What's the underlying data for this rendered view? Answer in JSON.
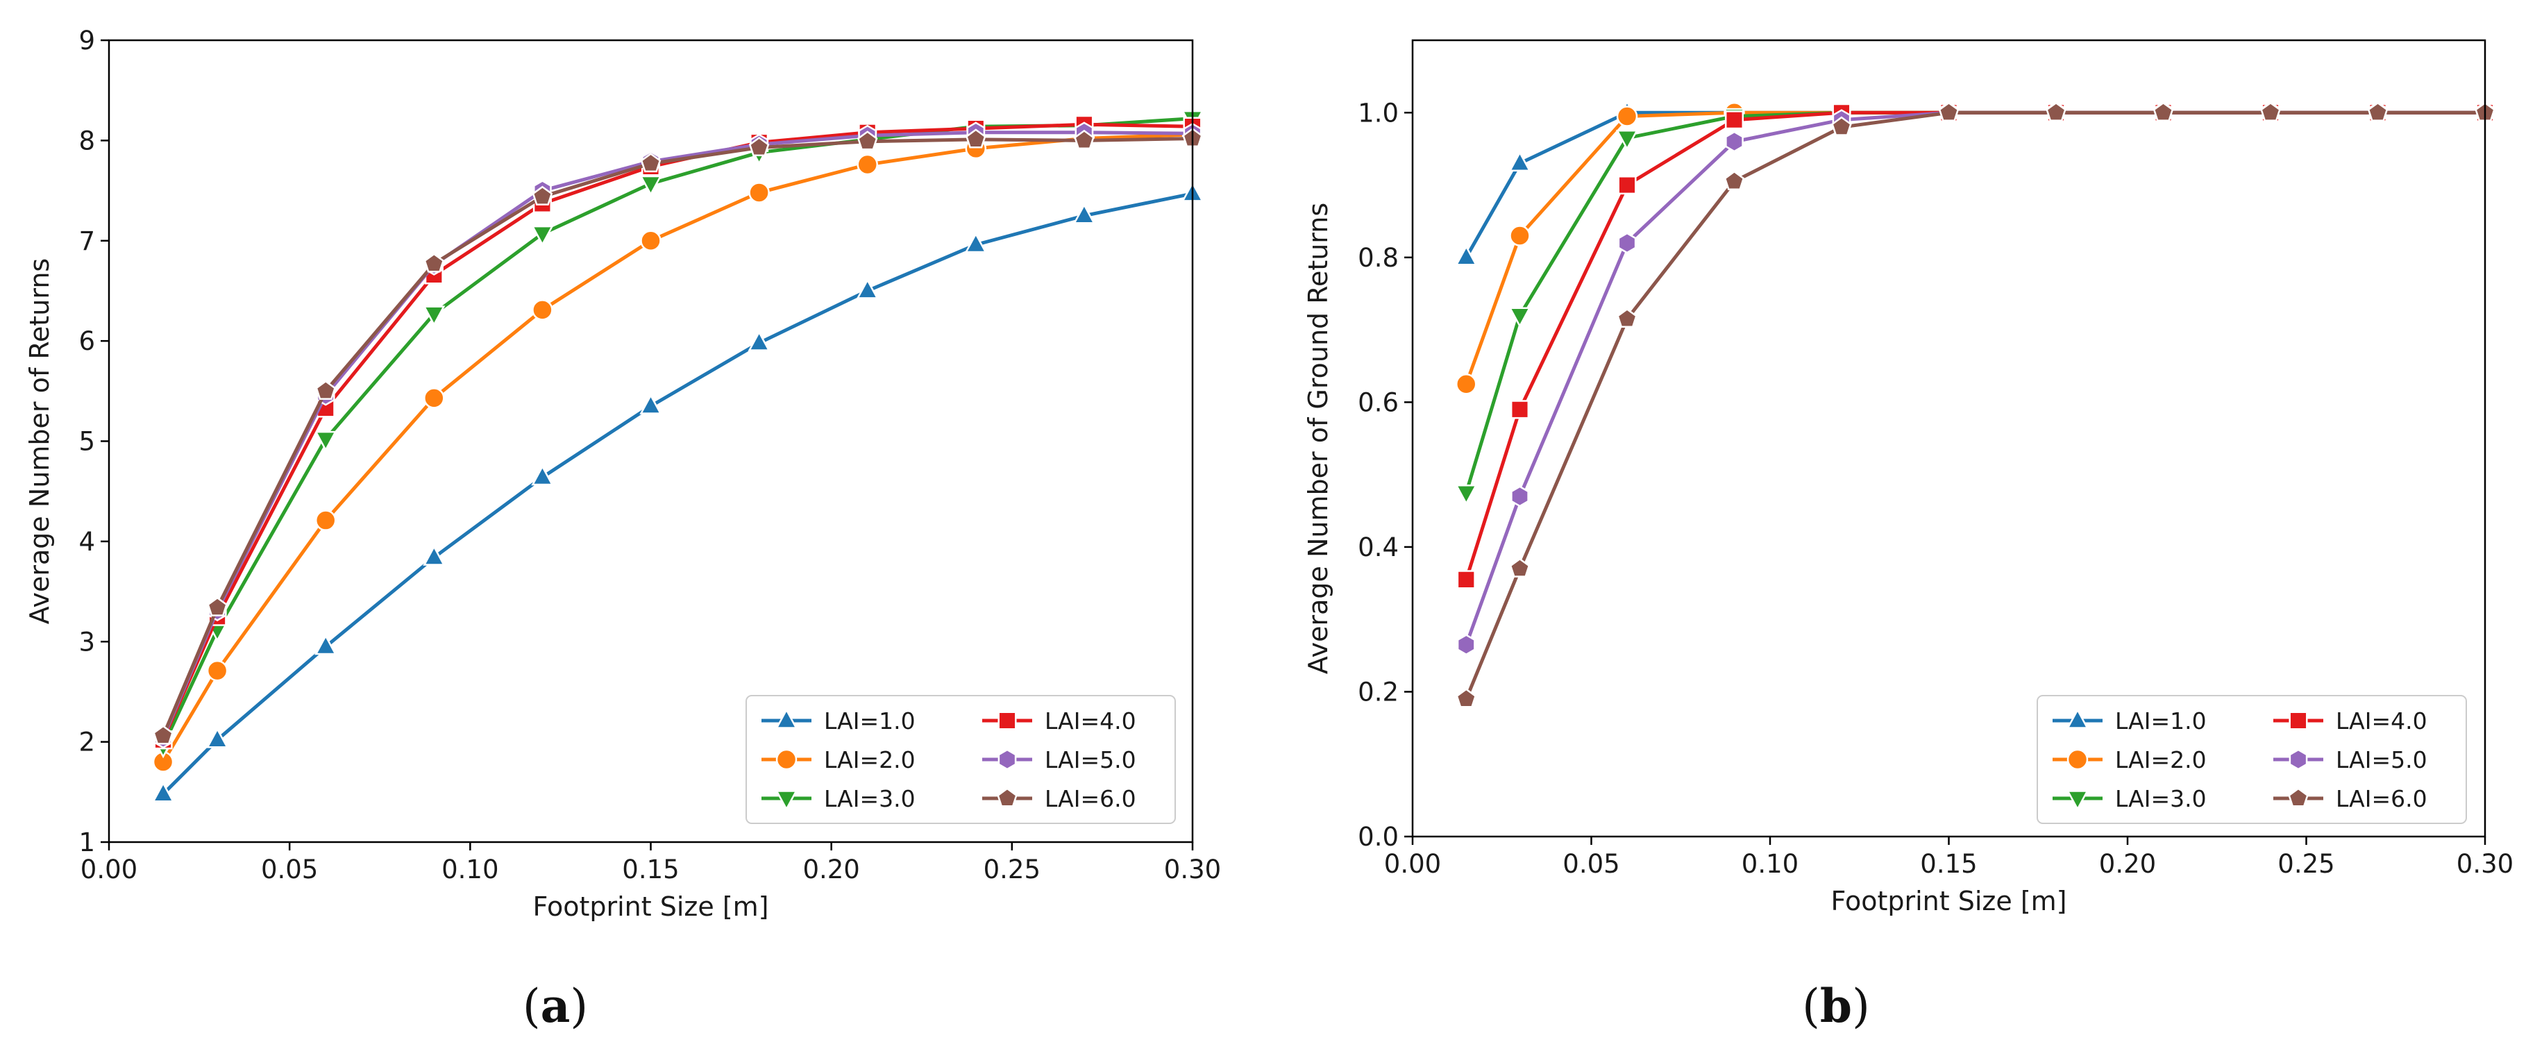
{
  "chart_data": [
    {
      "type": "line",
      "panel_label": "a",
      "title": "",
      "xlabel": "Footprint Size [m]",
      "ylabel": "Average Number of Returns",
      "xlim": [
        0.0,
        0.3
      ],
      "ylim": [
        1,
        9
      ],
      "xticks": [
        "0.00",
        "0.05",
        "0.10",
        "0.15",
        "0.20",
        "0.25",
        "0.30"
      ],
      "yticks": [
        "1",
        "2",
        "3",
        "4",
        "5",
        "6",
        "7",
        "8",
        "9"
      ],
      "grid": false,
      "legend_position": "lower-right",
      "x": [
        0.015,
        0.03,
        0.06,
        0.09,
        0.12,
        0.15,
        0.18,
        0.21,
        0.24,
        0.27,
        0.3
      ],
      "series": [
        {
          "name": "LAI=1.0",
          "color": "#1f77b4",
          "marker": "triangle-up",
          "values": [
            1.48,
            2.02,
            2.95,
            3.84,
            4.64,
            5.35,
            5.98,
            6.5,
            6.96,
            7.25,
            7.47
          ]
        },
        {
          "name": "LAI=2.0",
          "color": "#ff7f0e",
          "marker": "circle",
          "values": [
            1.8,
            2.71,
            4.21,
            5.43,
            6.31,
            7.0,
            7.48,
            7.76,
            7.92,
            8.02,
            8.06
          ]
        },
        {
          "name": "LAI=3.0",
          "color": "#2ca02c",
          "marker": "triangle-down",
          "values": [
            1.96,
            3.12,
            5.02,
            6.27,
            7.07,
            7.57,
            7.88,
            8.01,
            8.14,
            8.15,
            8.22
          ]
        },
        {
          "name": "LAI=4.0",
          "color": "#e41a1c",
          "marker": "square",
          "values": [
            2.02,
            3.25,
            5.33,
            6.66,
            7.37,
            7.74,
            7.98,
            8.08,
            8.12,
            8.16,
            8.14
          ]
        },
        {
          "name": "LAI=5.0",
          "color": "#9467bd",
          "marker": "hexagon",
          "values": [
            2.04,
            3.31,
            5.46,
            6.76,
            7.5,
            7.79,
            7.96,
            8.05,
            8.08,
            8.08,
            8.07
          ]
        },
        {
          "name": "LAI=6.0",
          "color": "#8c564b",
          "marker": "pentagon",
          "values": [
            2.06,
            3.34,
            5.5,
            6.77,
            7.44,
            7.77,
            7.93,
            7.99,
            8.01,
            8.0,
            8.02
          ]
        }
      ]
    },
    {
      "type": "line",
      "panel_label": "b",
      "title": "",
      "xlabel": "Footprint Size [m]",
      "ylabel": "Average Number of Ground Returns",
      "xlim": [
        0.0,
        0.3
      ],
      "ylim": [
        0.0,
        1.1
      ],
      "xticks": [
        "0.00",
        "0.05",
        "0.10",
        "0.15",
        "0.20",
        "0.25",
        "0.30"
      ],
      "yticks": [
        "0.0",
        "0.2",
        "0.4",
        "0.6",
        "0.8",
        "1.0"
      ],
      "grid": false,
      "legend_position": "lower-right",
      "x": [
        0.015,
        0.03,
        0.06,
        0.09,
        0.12,
        0.15,
        0.18,
        0.21,
        0.24,
        0.27,
        0.3
      ],
      "series": [
        {
          "name": "LAI=1.0",
          "color": "#1f77b4",
          "marker": "triangle-up",
          "values": [
            0.8,
            0.93,
            1.0,
            1.0,
            1.0,
            1.0,
            1.0,
            1.0,
            1.0,
            1.0,
            1.0
          ]
        },
        {
          "name": "LAI=2.0",
          "color": "#ff7f0e",
          "marker": "circle",
          "values": [
            0.625,
            0.83,
            0.995,
            1.0,
            1.0,
            1.0,
            1.0,
            1.0,
            1.0,
            1.0,
            1.0
          ]
        },
        {
          "name": "LAI=3.0",
          "color": "#2ca02c",
          "marker": "triangle-down",
          "values": [
            0.475,
            0.72,
            0.965,
            0.995,
            1.0,
            1.0,
            1.0,
            1.0,
            1.0,
            1.0,
            1.0
          ]
        },
        {
          "name": "LAI=4.0",
          "color": "#e41a1c",
          "marker": "square",
          "values": [
            0.355,
            0.59,
            0.9,
            0.99,
            1.0,
            1.0,
            1.0,
            1.0,
            1.0,
            1.0,
            1.0
          ]
        },
        {
          "name": "LAI=5.0",
          "color": "#9467bd",
          "marker": "hexagon",
          "values": [
            0.265,
            0.47,
            0.82,
            0.96,
            0.99,
            1.0,
            1.0,
            1.0,
            1.0,
            1.0,
            1.0
          ]
        },
        {
          "name": "LAI=6.0",
          "color": "#8c564b",
          "marker": "pentagon",
          "values": [
            0.19,
            0.37,
            0.715,
            0.905,
            0.98,
            1.0,
            1.0,
            1.0,
            1.0,
            1.0,
            1.0
          ]
        }
      ]
    }
  ]
}
